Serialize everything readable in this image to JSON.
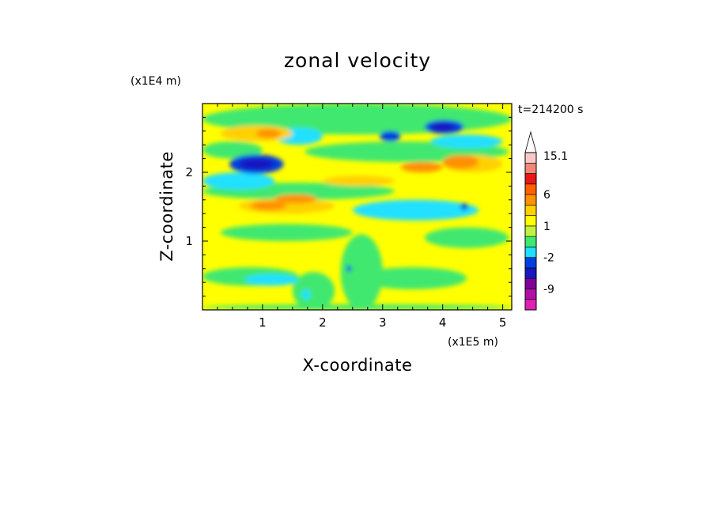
{
  "chart_data": {
    "type": "heatmap",
    "title": "zonal velocity",
    "xlabel": "X-coordinate",
    "ylabel": "Z-coordinate",
    "x_unit": "(x1E5 m)",
    "y_unit": "(x1E4 m)",
    "time_label": "t=214200 s",
    "xlim": [
      0,
      5.15
    ],
    "ylim": [
      0,
      3.0
    ],
    "x_ticks": [
      {
        "v": 1,
        "t": "1"
      },
      {
        "v": 2,
        "t": "2"
      },
      {
        "v": 3,
        "t": "3"
      },
      {
        "v": 4,
        "t": "4"
      },
      {
        "v": 5,
        "t": "5"
      }
    ],
    "y_ticks": [
      {
        "v": 1,
        "t": "1"
      },
      {
        "v": 2,
        "t": "2"
      }
    ],
    "colorbar": {
      "levels": [
        -15,
        -12,
        -9,
        -6,
        -3,
        -2,
        -1,
        0,
        1,
        2,
        3,
        6,
        9,
        12,
        15.1
      ],
      "colors": [
        "#e020b0",
        "#b010a8",
        "#800098",
        "#1818c0",
        "#0040e0",
        "#20e0ff",
        "#40e870",
        "#c0f040",
        "#ffff00",
        "#ffd000",
        "#ff9000",
        "#ff6000",
        "#e81818",
        "#f08878",
        "#f8c8c8"
      ],
      "labels": [
        {
          "v": 15.1,
          "t": "15.1"
        },
        {
          "v": 6,
          "t": "6"
        },
        {
          "v": 1,
          "t": "1"
        },
        {
          "v": -2,
          "t": "-2"
        },
        {
          "v": -9,
          "t": "-9"
        }
      ]
    },
    "field_background": "#ffff00",
    "regions": [
      {
        "c": "#40e870",
        "x": [
          0,
          5.15
        ],
        "y": [
          2.55,
          3.0
        ]
      },
      {
        "c": "#40e870",
        "x": [
          0,
          5.15
        ],
        "y": [
          0,
          0.08
        ]
      },
      {
        "c": "#40e870",
        "x": [
          0.0,
          1.6
        ],
        "y": [
          0.35,
          0.62
        ]
      },
      {
        "c": "#40e870",
        "x": [
          2.6,
          4.4
        ],
        "y": [
          0.3,
          0.62
        ]
      },
      {
        "c": "#40e870",
        "x": [
          0.3,
          2.5
        ],
        "y": [
          1.0,
          1.25
        ]
      },
      {
        "c": "#40e870",
        "x": [
          3.7,
          5.1
        ],
        "y": [
          0.9,
          1.2
        ]
      },
      {
        "c": "#40e870",
        "x": [
          1.7,
          5.1
        ],
        "y": [
          2.15,
          2.45
        ]
      },
      {
        "c": "#40e870",
        "x": [
          0.0,
          1.0
        ],
        "y": [
          2.2,
          2.45
        ]
      },
      {
        "c": "#40e870",
        "x": [
          0.0,
          3.2
        ],
        "y": [
          1.6,
          1.85
        ]
      },
      {
        "c": "#40e870",
        "x": [
          2.3,
          3.0
        ],
        "y": [
          0.0,
          1.1
        ]
      },
      {
        "c": "#40e870",
        "x": [
          1.5,
          2.2
        ],
        "y": [
          0.0,
          0.55
        ]
      },
      {
        "c": "#20e0ff",
        "x": [
          2.5,
          4.6
        ],
        "y": [
          1.3,
          1.6
        ]
      },
      {
        "c": "#20e0ff",
        "x": [
          0.0,
          1.2
        ],
        "y": [
          1.75,
          2.0
        ]
      },
      {
        "c": "#20e0ff",
        "x": [
          0.7,
          1.6
        ],
        "y": [
          0.35,
          0.52
        ]
      },
      {
        "c": "#20e0ff",
        "x": [
          1.2,
          2.0
        ],
        "y": [
          2.4,
          2.65
        ]
      },
      {
        "c": "#20e0ff",
        "x": [
          3.8,
          5.0
        ],
        "y": [
          2.35,
          2.55
        ]
      },
      {
        "c": "#20e0ff",
        "x": [
          1.65,
          1.8
        ],
        "y": [
          0.15,
          0.3
        ]
      },
      {
        "c": "#ffd000",
        "x": [
          0.6,
          2.2
        ],
        "y": [
          1.4,
          1.62
        ]
      },
      {
        "c": "#ffd000",
        "x": [
          0.3,
          1.5
        ],
        "y": [
          2.45,
          2.68
        ]
      },
      {
        "c": "#ffd000",
        "x": [
          4.0,
          5.0
        ],
        "y": [
          2.0,
          2.25
        ]
      },
      {
        "c": "#ffd000",
        "x": [
          2.0,
          3.2
        ],
        "y": [
          1.8,
          1.95
        ]
      },
      {
        "c": "#ff9000",
        "x": [
          0.8,
          1.4
        ],
        "y": [
          1.45,
          1.58
        ]
      },
      {
        "c": "#ff9000",
        "x": [
          1.2,
          1.9
        ],
        "y": [
          1.55,
          1.68
        ]
      },
      {
        "c": "#ff9000",
        "x": [
          0.9,
          1.3
        ],
        "y": [
          2.5,
          2.63
        ]
      },
      {
        "c": "#ff9000",
        "x": [
          4.0,
          4.6
        ],
        "y": [
          2.05,
          2.25
        ]
      },
      {
        "c": "#ff9000",
        "x": [
          3.3,
          4.0
        ],
        "y": [
          2.0,
          2.15
        ]
      },
      {
        "c": "#0040e0",
        "x": [
          0.45,
          1.35
        ],
        "y": [
          1.98,
          2.26
        ]
      },
      {
        "c": "#0040e0",
        "x": [
          3.7,
          4.35
        ],
        "y": [
          2.56,
          2.76
        ]
      },
      {
        "c": "#0040e0",
        "x": [
          2.95,
          3.3
        ],
        "y": [
          2.45,
          2.6
        ]
      },
      {
        "c": "#0040e0",
        "x": [
          4.3,
          4.42
        ],
        "y": [
          1.45,
          1.55
        ]
      },
      {
        "c": "#0040e0",
        "x": [
          2.4,
          2.48
        ],
        "y": [
          0.55,
          0.65
        ]
      },
      {
        "c": "#1818c0",
        "x": [
          0.6,
          1.2
        ],
        "y": [
          2.04,
          2.2
        ]
      },
      {
        "c": "#1818c0",
        "x": [
          3.8,
          4.2
        ],
        "y": [
          2.6,
          2.72
        ]
      }
    ]
  }
}
